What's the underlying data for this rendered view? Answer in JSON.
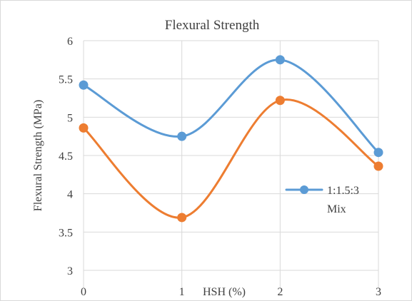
{
  "chart_data": {
    "type": "line",
    "title": "Flexural Strength",
    "xlabel": "HSH (%)",
    "ylabel": "Flexural Strength (MPa)",
    "x": [
      0,
      1,
      2,
      3
    ],
    "xlim": [
      0,
      3
    ],
    "ylim": [
      3,
      6
    ],
    "yticks": [
      "3",
      "3.5",
      "4",
      "4.5",
      "5",
      "5.5",
      "6"
    ],
    "xticks": [
      "0",
      "1",
      "2",
      "3"
    ],
    "grid": true,
    "smooth": true,
    "legend": {
      "position": "right",
      "entries": [
        {
          "label_line1": "1:1.5:3",
          "label_line2": "Mix",
          "series_index": 0
        }
      ]
    },
    "series": [
      {
        "name": "1:1.5:3 Mix",
        "color": "#5b9bd5",
        "values": [
          5.42,
          4.75,
          5.75,
          4.54
        ]
      },
      {
        "color": "#ed7d31",
        "values": [
          4.86,
          3.69,
          5.22,
          4.36
        ]
      }
    ]
  }
}
